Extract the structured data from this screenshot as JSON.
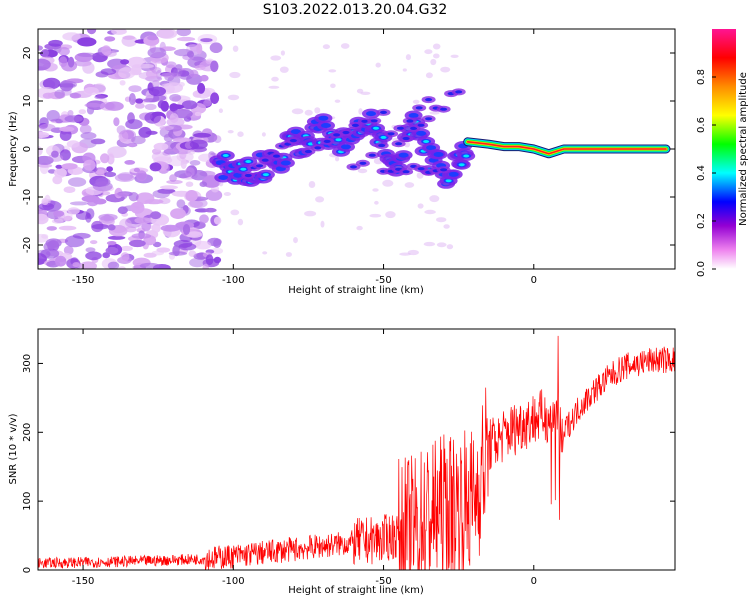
{
  "title": "S103.2022.013.20.04.G32",
  "chart_data": [
    {
      "type": "heatmap",
      "xlabel": "Height of straight line (km)",
      "ylabel": "Frequency (Hz)",
      "xlim": [
        -165,
        47
      ],
      "ylim": [
        -25,
        25
      ],
      "xticks": [
        -150,
        -100,
        -50,
        0
      ],
      "yticks": [
        -20,
        -10,
        0,
        10,
        20
      ],
      "colorbar": {
        "label": "Normalized spectral amplitude",
        "range": [
          0,
          1
        ],
        "ticks": [
          0.0,
          0.2,
          0.4,
          0.6,
          0.8
        ],
        "colormap": [
          "#ffffff",
          "#ee82ee",
          "#9400d3",
          "#0000ff",
          "#00ffff",
          "#00ff00",
          "#ffff00",
          "#ff8c00",
          "#ff0000",
          "#ff1493"
        ]
      },
      "ridge": [
        {
          "x": -105,
          "f": -3
        },
        {
          "x": -100,
          "f": -4
        },
        {
          "x": -95,
          "f": -5
        },
        {
          "x": -90,
          "f": -4
        },
        {
          "x": -85,
          "f": -2
        },
        {
          "x": -80,
          "f": 1
        },
        {
          "x": -75,
          "f": 2
        },
        {
          "x": -70,
          "f": 4
        },
        {
          "x": -65,
          "f": 0
        },
        {
          "x": -60,
          "f": 3
        },
        {
          "x": -55,
          "f": 6
        },
        {
          "x": -50,
          "f": 2
        },
        {
          "x": -45,
          "f": -3
        },
        {
          "x": -40,
          "f": 5
        },
        {
          "x": -35,
          "f": -2
        },
        {
          "x": -30,
          "f": -5
        },
        {
          "x": -25,
          "f": -2
        },
        {
          "x": -22,
          "f": 1.5
        },
        {
          "x": -15,
          "f": 1
        },
        {
          "x": -10,
          "f": 0.5
        },
        {
          "x": -5,
          "f": 0.5
        },
        {
          "x": 0,
          "f": 0
        },
        {
          "x": 5,
          "f": -1
        },
        {
          "x": 10,
          "f": 0
        },
        {
          "x": 20,
          "f": 0
        },
        {
          "x": 30,
          "f": 0
        },
        {
          "x": 44,
          "f": 0
        }
      ]
    },
    {
      "type": "line",
      "xlabel": "Height of straight line (km)",
      "ylabel": "SNR (10 * v/v)",
      "xlim": [
        -165,
        47
      ],
      "ylim": [
        0,
        350
      ],
      "xticks": [
        -150,
        -100,
        -50,
        0
      ],
      "yticks": [
        0,
        100,
        200,
        300
      ],
      "line_color": "#ff0000",
      "series": [
        {
          "x": [
            -165,
            -150,
            -130,
            -110,
            -100,
            -90,
            -80,
            -70,
            -60,
            -50,
            -40,
            -35,
            -30,
            -25,
            -20,
            -15,
            -10,
            -5,
            0,
            5,
            10,
            15,
            20,
            25,
            30,
            35,
            40,
            47
          ],
          "values": [
            10,
            11,
            13,
            16,
            20,
            25,
            30,
            35,
            40,
            45,
            60,
            80,
            90,
            95,
            100,
            180,
            195,
            210,
            220,
            225,
            200,
            235,
            260,
            280,
            295,
            300,
            305,
            305
          ]
        }
      ]
    }
  ]
}
